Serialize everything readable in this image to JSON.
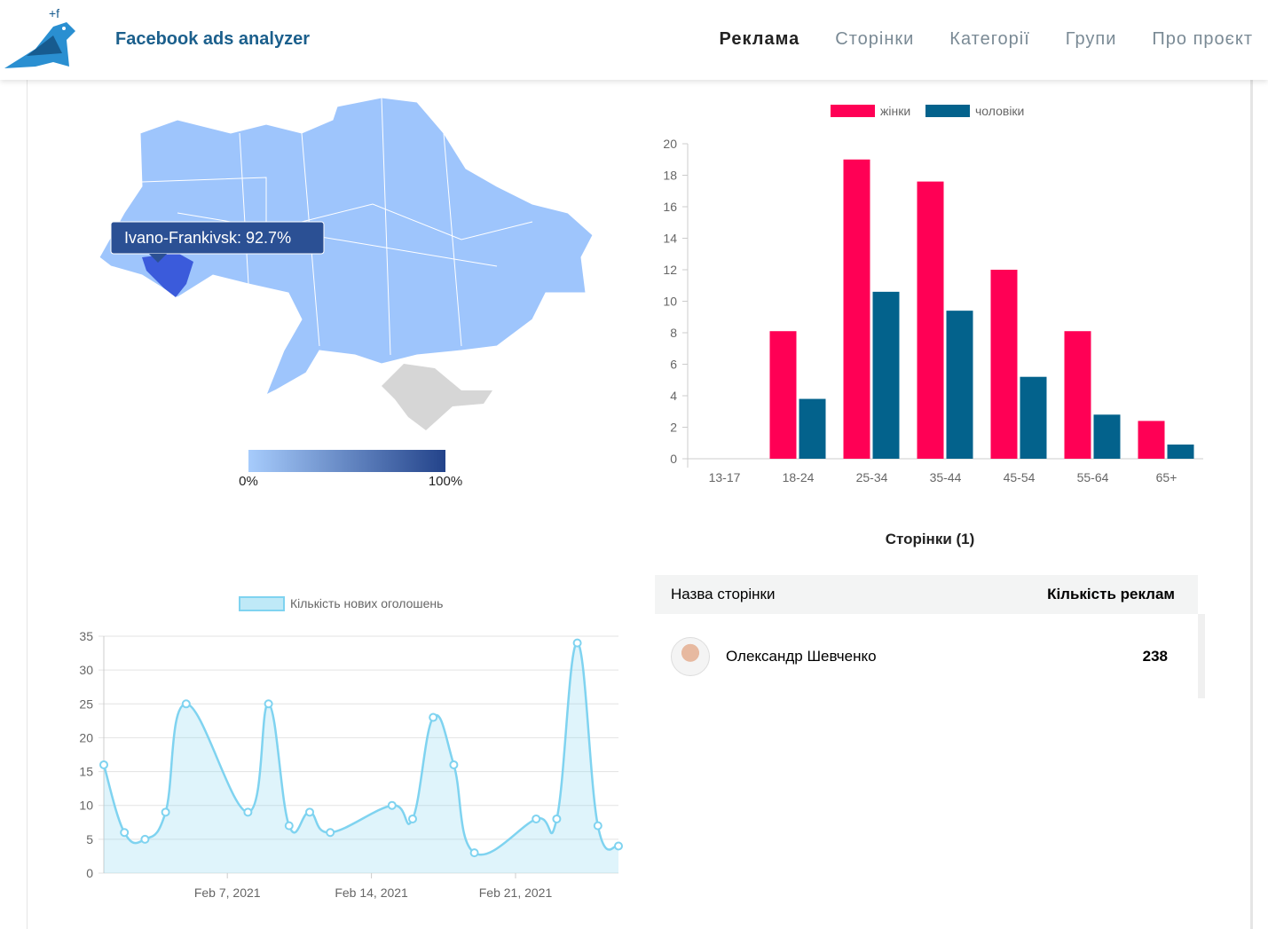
{
  "header": {
    "brand": "Facebook ads analyzer",
    "nav": [
      "Реклама",
      "Сторінки",
      "Категорії",
      "Групи",
      "Про проєкт"
    ]
  },
  "map": {
    "tooltip": "Ivano-Frankivsk: 92.7%",
    "scale_min": "0%",
    "scale_max": "100%"
  },
  "chart_data": [
    {
      "type": "bar",
      "categories": [
        "13-17",
        "18-24",
        "25-34",
        "35-44",
        "45-54",
        "55-64",
        "65+"
      ],
      "series": [
        {
          "name": "жінки",
          "color": "#ff0055",
          "values": [
            0,
            8.1,
            19,
            17.6,
            12,
            8.1,
            2.4
          ]
        },
        {
          "name": "чоловіки",
          "color": "#03628c",
          "values": [
            0,
            3.8,
            10.6,
            9.4,
            5.2,
            2.8,
            0.9
          ]
        }
      ],
      "ylim": [
        0,
        20
      ],
      "yticks": [
        0,
        2,
        4,
        6,
        8,
        10,
        12,
        14,
        16,
        18,
        20
      ]
    },
    {
      "type": "line",
      "series_name": "Кількість нових оголошень",
      "color": "#7fd3f0",
      "x": [
        "2021-02-01",
        "2021-02-02",
        "2021-02-03",
        "2021-02-04",
        "2021-02-05",
        "2021-02-08",
        "2021-02-09",
        "2021-02-10",
        "2021-02-11",
        "2021-02-12",
        "2021-02-15",
        "2021-02-16",
        "2021-02-17",
        "2021-02-18",
        "2021-02-19",
        "2021-02-22",
        "2021-02-23",
        "2021-02-24",
        "2021-02-25",
        "2021-02-26"
      ],
      "values": [
        16,
        6,
        5,
        9,
        25,
        9,
        25,
        7,
        9,
        6,
        10,
        8,
        23,
        16,
        3,
        8,
        8,
        34,
        7,
        4
      ],
      "xlim": [
        "2021-02-01",
        "2021-02-26"
      ],
      "xticks": [
        {
          "value": "2021-02-07",
          "label": "Feb 7, 2021"
        },
        {
          "value": "2021-02-14",
          "label": "Feb 14, 2021"
        },
        {
          "value": "2021-02-21",
          "label": "Feb 21, 2021"
        }
      ],
      "ylim": [
        0,
        35
      ],
      "yticks": [
        0,
        5,
        10,
        15,
        20,
        25,
        30,
        35
      ]
    }
  ],
  "table": {
    "title": "Сторінки (1)",
    "columns": [
      "Назва сторінки",
      "Кількість реклам"
    ],
    "rows": [
      [
        "Олександр Шевченко",
        238
      ]
    ]
  }
}
